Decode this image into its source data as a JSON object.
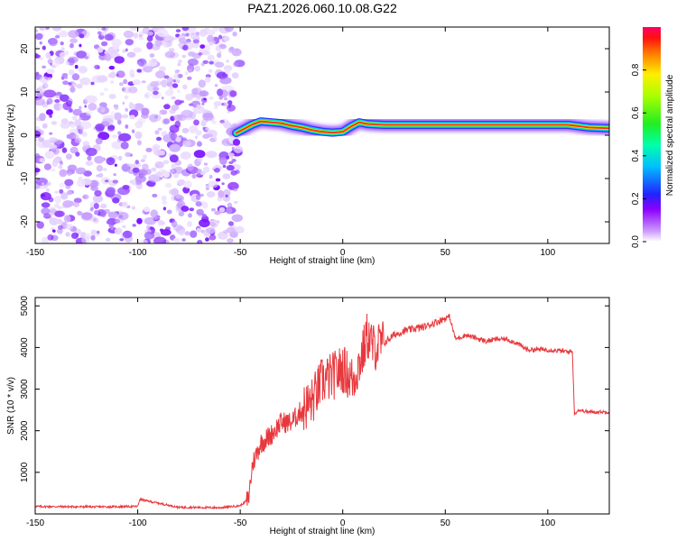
{
  "title": "PAZ1.2026.060.10.08.G22",
  "chart_data": [
    {
      "type": "heatmap",
      "name": "spectrogram",
      "xlabel": "Height of straight line (km)",
      "ylabel": "Frequency (Hz)",
      "xlim": [
        -150,
        130
      ],
      "ylim": [
        -25,
        25
      ],
      "xticks": [
        -150,
        -100,
        -50,
        0,
        50,
        100
      ],
      "yticks": [
        -20,
        -10,
        0,
        10,
        20
      ],
      "noise_region_x": [
        -150,
        -52
      ],
      "signal_track": [
        {
          "x": -52,
          "y": 0.5
        },
        {
          "x": -48,
          "y": 1.5
        },
        {
          "x": -44,
          "y": 2.5
        },
        {
          "x": -40,
          "y": 3.2
        },
        {
          "x": -35,
          "y": 3.0
        },
        {
          "x": -30,
          "y": 2.8
        },
        {
          "x": -25,
          "y": 2.2
        },
        {
          "x": -20,
          "y": 1.8
        },
        {
          "x": -15,
          "y": 1.2
        },
        {
          "x": -10,
          "y": 0.8
        },
        {
          "x": -5,
          "y": 0.6
        },
        {
          "x": 0,
          "y": 0.8
        },
        {
          "x": 4,
          "y": 2.0
        },
        {
          "x": 8,
          "y": 3.0
        },
        {
          "x": 12,
          "y": 2.6
        },
        {
          "x": 20,
          "y": 2.4
        },
        {
          "x": 50,
          "y": 2.4
        },
        {
          "x": 80,
          "y": 2.4
        },
        {
          "x": 110,
          "y": 2.4
        },
        {
          "x": 120,
          "y": 1.8
        },
        {
          "x": 130,
          "y": 1.6
        }
      ],
      "colorbar": {
        "label": "Normalized spectral amplitude",
        "ticks": [
          "0.0",
          "0.2",
          "0.4",
          "0.6",
          "0.8"
        ],
        "range": [
          0,
          1
        ]
      }
    },
    {
      "type": "line",
      "name": "snr",
      "xlabel": "Height of straight line (km)",
      "ylabel": "SNR (10 * v/v)",
      "xlim": [
        -150,
        130
      ],
      "ylim": [
        0,
        5200
      ],
      "xticks": [
        -150,
        -100,
        -50,
        0,
        50,
        100
      ],
      "yticks": [
        1000,
        2000,
        3000,
        4000,
        5000
      ],
      "color": "#e8383d",
      "series": [
        {
          "name": "SNR",
          "x": [
            -150,
            -120,
            -100,
            -99,
            -80,
            -60,
            -50,
            -46,
            -44,
            -40,
            -35,
            -30,
            -25,
            -20,
            -15,
            -10,
            -5,
            0,
            5,
            10,
            12,
            15,
            20,
            25,
            30,
            40,
            50,
            52,
            55,
            60,
            70,
            75,
            80,
            85,
            90,
            100,
            110,
            112,
            113,
            115,
            120,
            130
          ],
          "values": [
            180,
            170,
            180,
            350,
            160,
            150,
            200,
            350,
            1200,
            1700,
            1900,
            2200,
            2200,
            2500,
            2700,
            3200,
            3300,
            3500,
            3200,
            3900,
            4300,
            4000,
            4100,
            4300,
            4400,
            4500,
            4700,
            4750,
            4200,
            4300,
            4150,
            4200,
            4200,
            4100,
            3950,
            3950,
            3900,
            3900,
            2400,
            2500,
            2450,
            2450
          ]
        }
      ]
    }
  ]
}
